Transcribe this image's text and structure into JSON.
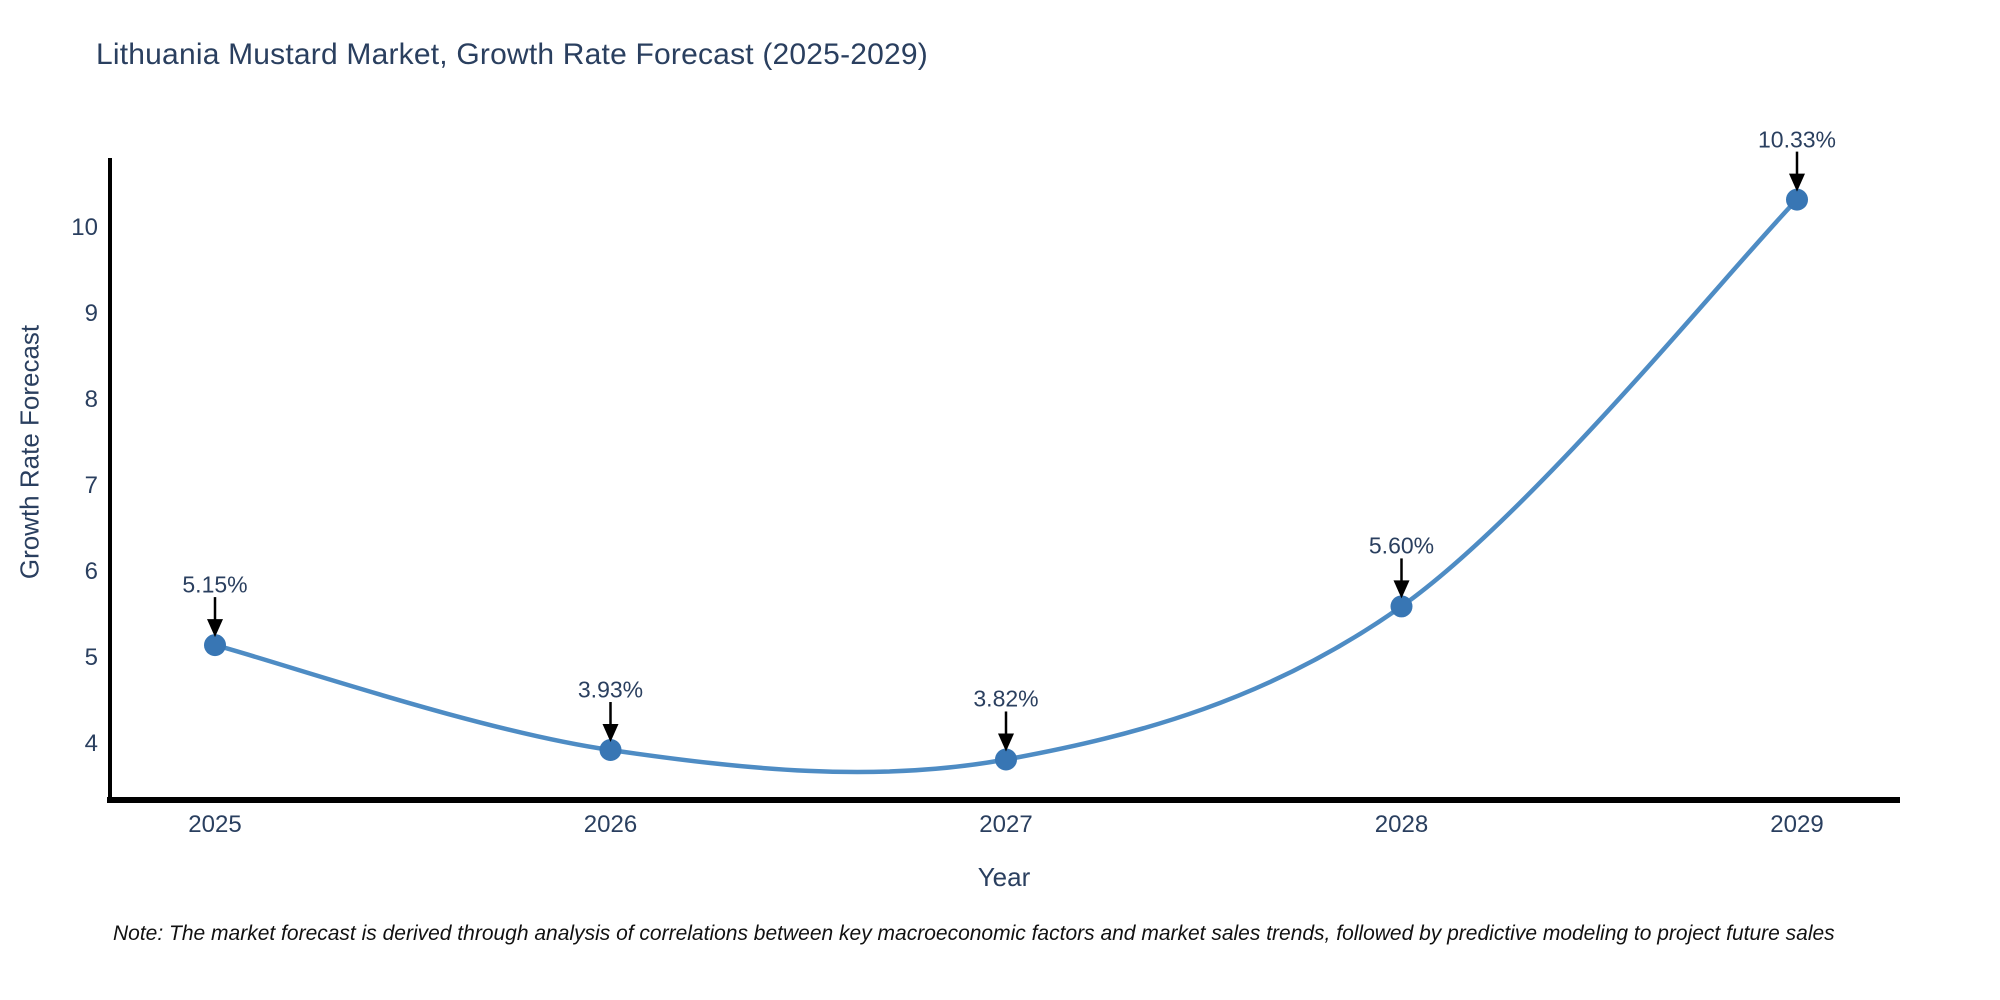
{
  "title": "Lithuania Mustard Market, Growth Rate Forecast (2025-2029)",
  "note": "Note: The market forecast is derived through analysis of correlations between key macroeconomic factors and market sales trends, followed by predictive modeling to project future sales",
  "chart_data": {
    "type": "line",
    "title": "Lithuania Mustard Market, Growth Rate Forecast (2025-2029)",
    "xlabel": "Year",
    "ylabel": "Growth Rate Forecast",
    "categories": [
      "2025",
      "2026",
      "2027",
      "2028",
      "2029"
    ],
    "series": [
      {
        "name": "Growth Rate Forecast",
        "values": [
          5.15,
          3.93,
          3.82,
          5.6,
          10.33
        ],
        "point_labels": [
          "5.15%",
          "3.93%",
          "3.82%",
          "5.60%",
          "10.33%"
        ]
      }
    ],
    "y_ticks": [
      4,
      5,
      6,
      7,
      8,
      9,
      10
    ],
    "ylim": [
      3.35,
      10.81
    ],
    "line_shape": "spline",
    "grid": false,
    "legend_position": "none",
    "colors": {
      "line": "#4e8cc4",
      "marker": "#3876b4",
      "arrow": "#000000",
      "axis": "#000000",
      "text": "#2a3f5f"
    }
  }
}
